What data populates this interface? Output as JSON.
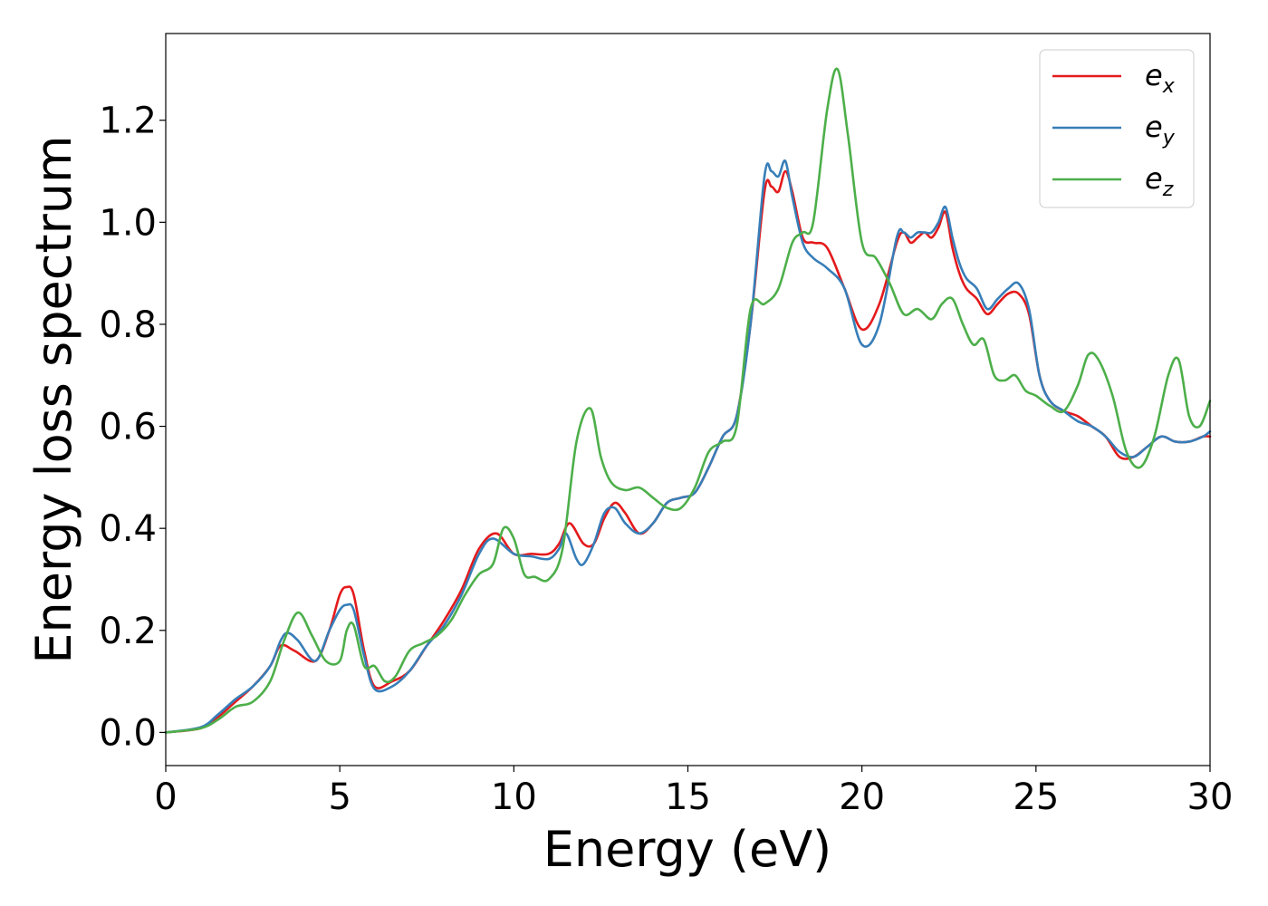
{
  "chart_data": {
    "type": "line",
    "title": "",
    "xlabel": "Energy (eV)",
    "ylabel": "Energy loss spectrum",
    "xlim": [
      0,
      30
    ],
    "ylim": [
      -0.065,
      1.37
    ],
    "xticks": [
      0,
      5,
      10,
      15,
      20,
      25,
      30
    ],
    "xtick_labels": [
      "0",
      "5",
      "10",
      "15",
      "20",
      "25",
      "30"
    ],
    "yticks": [
      0.0,
      0.2,
      0.4,
      0.6,
      0.8,
      1.0,
      1.2
    ],
    "ytick_labels": [
      "0.0",
      "0.2",
      "0.4",
      "0.6",
      "0.8",
      "1.0",
      "1.2"
    ],
    "grid": false,
    "legend": "top-right",
    "series": [
      {
        "name": "e_x",
        "label_base": "e",
        "label_sub": "x",
        "color": "#e41a1c",
        "x": [
          0,
          1,
          1.5,
          2,
          2.5,
          3,
          3.3,
          3.7,
          4.3,
          4.7,
          5,
          5.2,
          5.4,
          5.7,
          6,
          6.5,
          7,
          7.5,
          8,
          8.5,
          9,
          9.5,
          10,
          10.5,
          11,
          11.3,
          11.6,
          12,
          12.3,
          12.6,
          12.9,
          13.2,
          13.6,
          14,
          14.4,
          14.8,
          15.2,
          15.6,
          16,
          16.4,
          16.8,
          17.2,
          17.4,
          17.6,
          17.8,
          18,
          18.3,
          18.6,
          19,
          19.5,
          20,
          20.5,
          21,
          21.2,
          21.4,
          21.6,
          21.8,
          22,
          22.2,
          22.4,
          22.6,
          22.8,
          23,
          23.3,
          23.6,
          23.9,
          24.2,
          24.5,
          24.8,
          25.1,
          25.4,
          25.8,
          26.2,
          26.6,
          27,
          27.4,
          27.8,
          28.2,
          28.6,
          29,
          29.4,
          29.8,
          30
        ],
        "y": [
          0,
          0.008,
          0.03,
          0.06,
          0.09,
          0.13,
          0.17,
          0.16,
          0.14,
          0.2,
          0.27,
          0.285,
          0.27,
          0.16,
          0.09,
          0.1,
          0.12,
          0.17,
          0.22,
          0.28,
          0.36,
          0.39,
          0.35,
          0.35,
          0.35,
          0.37,
          0.41,
          0.37,
          0.37,
          0.42,
          0.45,
          0.43,
          0.39,
          0.41,
          0.45,
          0.46,
          0.47,
          0.52,
          0.58,
          0.62,
          0.8,
          1.06,
          1.07,
          1.06,
          1.1,
          1.06,
          0.97,
          0.96,
          0.95,
          0.87,
          0.79,
          0.84,
          0.96,
          0.98,
          0.96,
          0.97,
          0.98,
          0.97,
          0.99,
          1.02,
          0.95,
          0.9,
          0.87,
          0.85,
          0.82,
          0.84,
          0.86,
          0.86,
          0.82,
          0.7,
          0.65,
          0.63,
          0.62,
          0.6,
          0.58,
          0.54,
          0.54,
          0.56,
          0.58,
          0.57,
          0.57,
          0.58,
          0.58
        ]
      },
      {
        "name": "e_y",
        "label_base": "e",
        "label_sub": "y",
        "color": "#377eb8",
        "x": [
          0,
          1,
          1.5,
          2,
          2.5,
          3,
          3.3,
          3.5,
          3.8,
          4.3,
          4.7,
          5,
          5.2,
          5.4,
          5.7,
          6,
          6.5,
          7,
          7.5,
          8,
          8.5,
          9,
          9.4,
          10,
          10.5,
          11,
          11.3,
          11.5,
          11.8,
          12,
          12.3,
          12.6,
          12.9,
          13.2,
          13.6,
          14,
          14.4,
          14.8,
          15.2,
          15.6,
          16,
          16.4,
          16.8,
          17.2,
          17.4,
          17.6,
          17.8,
          18,
          18.3,
          18.6,
          19,
          19.5,
          20,
          20.5,
          21,
          21.2,
          21.4,
          21.6,
          21.8,
          22,
          22.2,
          22.4,
          22.6,
          22.8,
          23,
          23.3,
          23.6,
          23.9,
          24.2,
          24.5,
          24.8,
          25.1,
          25.4,
          25.8,
          26.2,
          26.6,
          27,
          27.4,
          27.8,
          28.2,
          28.6,
          29,
          29.4,
          29.8,
          30
        ],
        "y": [
          0,
          0.01,
          0.035,
          0.065,
          0.09,
          0.13,
          0.18,
          0.195,
          0.18,
          0.14,
          0.2,
          0.24,
          0.25,
          0.24,
          0.15,
          0.085,
          0.09,
          0.12,
          0.17,
          0.21,
          0.27,
          0.35,
          0.38,
          0.35,
          0.345,
          0.34,
          0.36,
          0.39,
          0.34,
          0.33,
          0.37,
          0.43,
          0.44,
          0.41,
          0.39,
          0.41,
          0.45,
          0.46,
          0.47,
          0.52,
          0.58,
          0.62,
          0.8,
          1.09,
          1.1,
          1.09,
          1.12,
          1.05,
          0.96,
          0.93,
          0.91,
          0.87,
          0.76,
          0.8,
          0.97,
          0.98,
          0.97,
          0.98,
          0.98,
          0.98,
          1.0,
          1.03,
          0.97,
          0.92,
          0.89,
          0.87,
          0.83,
          0.85,
          0.87,
          0.88,
          0.83,
          0.7,
          0.65,
          0.63,
          0.61,
          0.6,
          0.58,
          0.55,
          0.54,
          0.56,
          0.58,
          0.57,
          0.57,
          0.58,
          0.59
        ]
      },
      {
        "name": "e_z",
        "label_base": "e",
        "label_sub": "z",
        "color": "#4daf4a",
        "x": [
          0,
          1,
          1.5,
          2,
          2.5,
          3,
          3.4,
          3.8,
          4.2,
          4.6,
          5,
          5.2,
          5.4,
          5.7,
          6,
          6.3,
          6.6,
          7,
          7.4,
          7.8,
          8.2,
          8.6,
          9,
          9.4,
          9.7,
          10,
          10.3,
          10.6,
          11,
          11.4,
          11.8,
          12.2,
          12.5,
          12.8,
          13.2,
          13.6,
          14,
          14.4,
          14.8,
          15.2,
          15.6,
          16,
          16.4,
          16.8,
          17.2,
          17.6,
          18,
          18.3,
          18.6,
          19,
          19.3,
          19.6,
          20,
          20.4,
          20.8,
          21.2,
          21.6,
          22,
          22.3,
          22.6,
          22.9,
          23.2,
          23.5,
          23.8,
          24.1,
          24.4,
          24.7,
          25,
          25.4,
          25.8,
          26.2,
          26.5,
          26.8,
          27.2,
          27.6,
          28,
          28.4,
          28.8,
          29.1,
          29.4,
          29.7,
          30
        ],
        "y": [
          0,
          0.008,
          0.025,
          0.05,
          0.06,
          0.1,
          0.18,
          0.235,
          0.19,
          0.14,
          0.14,
          0.2,
          0.21,
          0.13,
          0.13,
          0.1,
          0.11,
          0.16,
          0.175,
          0.19,
          0.22,
          0.27,
          0.31,
          0.33,
          0.4,
          0.38,
          0.31,
          0.305,
          0.3,
          0.36,
          0.57,
          0.635,
          0.54,
          0.49,
          0.475,
          0.48,
          0.46,
          0.44,
          0.44,
          0.48,
          0.55,
          0.57,
          0.6,
          0.83,
          0.84,
          0.87,
          0.96,
          0.98,
          1.0,
          1.22,
          1.3,
          1.17,
          0.96,
          0.93,
          0.88,
          0.82,
          0.83,
          0.81,
          0.84,
          0.85,
          0.8,
          0.76,
          0.77,
          0.7,
          0.69,
          0.7,
          0.67,
          0.66,
          0.64,
          0.63,
          0.68,
          0.74,
          0.73,
          0.66,
          0.55,
          0.52,
          0.58,
          0.7,
          0.73,
          0.62,
          0.6,
          0.65
        ]
      }
    ]
  }
}
